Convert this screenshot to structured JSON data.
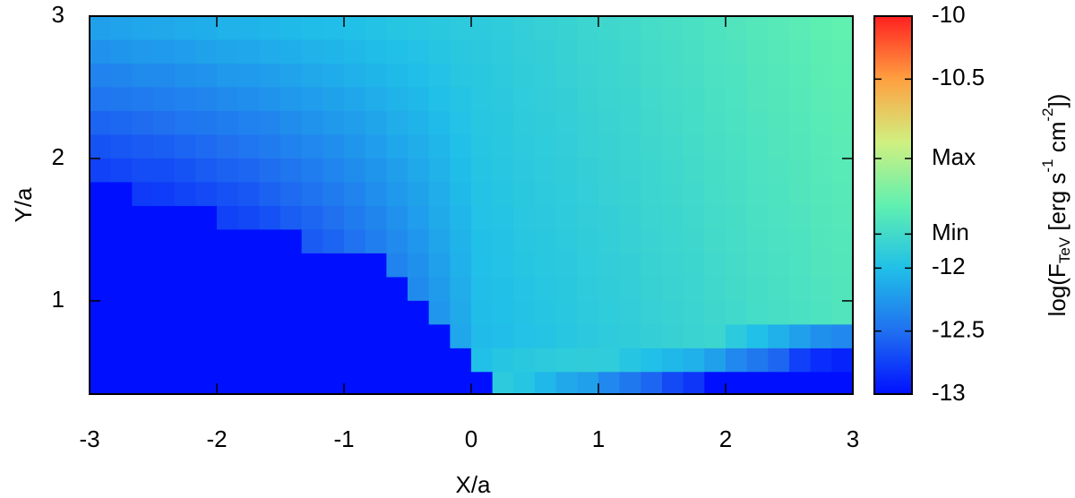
{
  "chart_data": {
    "type": "heatmap",
    "xlabel": "X/a",
    "ylabel": "Y/a",
    "colorbar_label": [
      "log(F",
      "TeV",
      " [erg s",
      "-1",
      " cm",
      "-2",
      "])"
    ],
    "xlim": [
      -3,
      3
    ],
    "ylim": [
      0.345,
      3
    ],
    "xticks": [
      -3,
      -2,
      -1,
      0,
      1,
      2,
      3
    ],
    "yticks": [
      1,
      2,
      3
    ],
    "zlim": [
      -13,
      -10
    ],
    "zticks": [
      -10,
      -10.5,
      {
        "value": -11.13,
        "label": "Max"
      },
      {
        "value": -11.73,
        "label": "Min"
      },
      -12,
      -12.5,
      -13
    ],
    "colorscale": [
      "#0010ff",
      "#2070f0",
      "#20c0e8",
      "#60f0b0",
      "#d0f080",
      "#ffa040",
      "#ff2020"
    ],
    "x": [
      -2.917,
      -2.75,
      -2.583,
      -2.417,
      -2.25,
      -2.083,
      -1.917,
      -1.75,
      -1.583,
      -1.417,
      -1.25,
      -1.083,
      -0.917,
      -0.75,
      -0.583,
      -0.417,
      -0.25,
      -0.083,
      0.083,
      0.25,
      0.417,
      0.583,
      0.75,
      0.917,
      1.083,
      1.25,
      1.417,
      1.583,
      1.75,
      1.917,
      2.083,
      2.25,
      2.417,
      2.583,
      2.75,
      2.917
    ],
    "y": [
      2.917,
      2.75,
      2.583,
      2.417,
      2.25,
      2.083,
      1.917,
      1.75,
      1.583,
      1.417,
      1.25,
      1.083,
      0.917,
      0.75,
      0.583,
      0.417
    ],
    "z": [
      [
        -12.2,
        -12.18,
        -12.16,
        -12.15,
        -12.13,
        -12.11,
        -12.09,
        -12.08,
        -12.06,
        -12.04,
        -12.02,
        -12.01,
        -11.99,
        -11.97,
        -11.95,
        -11.94,
        -11.92,
        -11.9,
        -11.9,
        -11.88,
        -11.85,
        -11.83,
        -11.81,
        -11.78,
        -11.76,
        -11.74,
        -11.71,
        -11.69,
        -11.67,
        -11.64,
        -11.62,
        -11.59,
        -11.57,
        -11.55,
        -11.52,
        -11.5
      ],
      [
        -12.29,
        -12.27,
        -12.25,
        -12.24,
        -12.22,
        -12.19,
        -12.17,
        -12.16,
        -12.13,
        -12.11,
        -12.09,
        -12.07,
        -12.05,
        -12.02,
        -11.99,
        -11.98,
        -11.95,
        -11.92,
        -11.91,
        -11.89,
        -11.86,
        -11.84,
        -11.82,
        -11.79,
        -11.77,
        -11.75,
        -11.72,
        -11.7,
        -11.68,
        -11.65,
        -11.63,
        -11.6,
        -11.58,
        -11.56,
        -11.53,
        -11.51
      ],
      [
        -12.38,
        -12.36,
        -12.34,
        -12.33,
        -12.3,
        -12.28,
        -12.25,
        -12.24,
        -12.21,
        -12.18,
        -12.15,
        -12.13,
        -12.1,
        -12.07,
        -12.04,
        -12.01,
        -11.98,
        -11.94,
        -11.92,
        -11.9,
        -11.87,
        -11.85,
        -11.83,
        -11.8,
        -11.78,
        -11.76,
        -11.73,
        -11.71,
        -11.69,
        -11.66,
        -11.64,
        -11.61,
        -11.59,
        -11.57,
        -11.54,
        -11.52
      ],
      [
        -12.47,
        -12.45,
        -12.43,
        -12.41,
        -12.39,
        -12.36,
        -12.33,
        -12.31,
        -12.28,
        -12.25,
        -12.22,
        -12.19,
        -12.16,
        -12.12,
        -12.08,
        -12.05,
        -12.0,
        -11.96,
        -11.93,
        -11.91,
        -11.88,
        -11.86,
        -11.84,
        -11.81,
        -11.79,
        -11.77,
        -11.74,
        -11.72,
        -11.7,
        -11.67,
        -11.65,
        -11.62,
        -11.6,
        -11.58,
        -11.55,
        -11.53
      ],
      [
        -12.56,
        -12.54,
        -12.52,
        -12.5,
        -12.47,
        -12.45,
        -12.42,
        -12.39,
        -12.36,
        -12.32,
        -12.28,
        -12.25,
        -12.21,
        -12.17,
        -12.12,
        -12.08,
        -12.03,
        -11.98,
        -11.94,
        -11.92,
        -11.89,
        -11.87,
        -11.85,
        -11.82,
        -11.8,
        -11.78,
        -11.75,
        -11.73,
        -11.71,
        -11.68,
        -11.66,
        -11.63,
        -11.61,
        -11.59,
        -11.56,
        -11.54
      ],
      [
        -12.65,
        -12.63,
        -12.61,
        -12.59,
        -12.56,
        -12.53,
        -12.5,
        -12.47,
        -12.43,
        -12.39,
        -12.35,
        -12.31,
        -12.27,
        -12.22,
        -12.16,
        -12.12,
        -12.06,
        -12.0,
        -11.95,
        -11.93,
        -11.9,
        -11.88,
        -11.86,
        -11.83,
        -11.81,
        -11.79,
        -11.76,
        -11.74,
        -11.72,
        -11.69,
        -11.67,
        -11.64,
        -11.62,
        -11.6,
        -11.57,
        -11.55
      ],
      [
        -12.74,
        -12.72,
        -12.69,
        -12.68,
        -12.65,
        -12.61,
        -12.58,
        -12.55,
        -12.51,
        -12.46,
        -12.42,
        -12.37,
        -12.32,
        -12.27,
        -12.21,
        -12.15,
        -12.09,
        -12.02,
        -11.96,
        -11.94,
        -11.91,
        -11.89,
        -11.87,
        -11.84,
        -11.82,
        -11.8,
        -11.77,
        -11.75,
        -11.73,
        -11.7,
        -11.68,
        -11.65,
        -11.63,
        -11.61,
        -11.58,
        -11.56
      ],
      [
        -13,
        -13,
        -12.78,
        -12.77,
        -12.73,
        -12.7,
        -12.66,
        -12.63,
        -12.58,
        -12.53,
        -12.48,
        -12.43,
        -12.38,
        -12.31,
        -12.25,
        -12.19,
        -12.12,
        -12.04,
        -11.97,
        -11.95,
        -11.92,
        -11.9,
        -11.88,
        -11.85,
        -11.83,
        -11.81,
        -11.78,
        -11.76,
        -11.74,
        -11.71,
        -11.69,
        -11.66,
        -11.64,
        -11.62,
        -11.59,
        -11.57
      ],
      [
        -13,
        -13,
        -13,
        -13,
        -13,
        -13,
        -12.74,
        -12.71,
        -12.66,
        -12.6,
        -12.55,
        -12.5,
        -12.43,
        -12.36,
        -12.29,
        -12.22,
        -12.14,
        -12.06,
        -11.98,
        -11.96,
        -11.93,
        -11.91,
        -11.89,
        -11.86,
        -11.84,
        -11.82,
        -11.79,
        -11.77,
        -11.75,
        -11.72,
        -11.7,
        -11.67,
        -11.65,
        -11.63,
        -11.6,
        -11.58
      ],
      [
        -13,
        -13,
        -13,
        -13,
        -13,
        -13,
        -13,
        -13,
        -13,
        -13,
        -12.61,
        -12.56,
        -12.49,
        -12.41,
        -12.33,
        -12.26,
        -12.17,
        -12.08,
        -11.99,
        -11.97,
        -11.94,
        -11.92,
        -11.9,
        -11.87,
        -11.85,
        -11.83,
        -11.8,
        -11.78,
        -11.76,
        -11.73,
        -11.71,
        -11.68,
        -11.66,
        -11.64,
        -11.61,
        -11.59
      ],
      [
        -13,
        -13,
        -13,
        -13,
        -13,
        -13,
        -13,
        -13,
        -13,
        -13,
        -13,
        -13,
        -13,
        -13,
        -12.38,
        -12.3,
        -12.2,
        -12.1,
        -12.0,
        -11.98,
        -11.95,
        -11.93,
        -11.91,
        -11.88,
        -11.86,
        -11.84,
        -11.81,
        -11.79,
        -11.77,
        -11.74,
        -11.72,
        -11.69,
        -11.67,
        -11.65,
        -11.62,
        -11.6
      ],
      [
        -13,
        -13,
        -13,
        -13,
        -13,
        -13,
        -13,
        -13,
        -13,
        -13,
        -13,
        -13,
        -13,
        -13,
        -13,
        -12.33,
        -12.23,
        -12.12,
        -12.01,
        -11.99,
        -11.96,
        -11.94,
        -11.92,
        -11.89,
        -11.87,
        -11.85,
        -11.82,
        -11.8,
        -11.78,
        -11.75,
        -11.73,
        -11.7,
        -11.68,
        -11.66,
        -11.63,
        -11.61
      ],
      [
        -13,
        -13,
        -13,
        -13,
        -13,
        -13,
        -13,
        -13,
        -13,
        -13,
        -13,
        -13,
        -13,
        -13,
        -13,
        -13,
        -12.26,
        -12.14,
        -12.02,
        -12.0,
        -11.97,
        -11.95,
        -11.93,
        -11.9,
        -11.88,
        -11.86,
        -11.83,
        -11.81,
        -11.79,
        -11.76,
        -11.74,
        -11.71,
        -11.69,
        -11.67,
        -11.64,
        -11.62
      ],
      [
        -13,
        -13,
        -13,
        -13,
        -13,
        -13,
        -13,
        -13,
        -13,
        -13,
        -13,
        -13,
        -13,
        -13,
        -13,
        -13,
        -13,
        -12.16,
        -12.03,
        -12.01,
        -11.98,
        -11.96,
        -11.94,
        -11.91,
        -11.89,
        -11.87,
        -11.84,
        -11.82,
        -11.8,
        -11.77,
        -11.9,
        -12.0,
        -12.1,
        -12.2,
        -12.3,
        -12.35
      ],
      [
        -13,
        -13,
        -13,
        -13,
        -13,
        -13,
        -13,
        -13,
        -13,
        -13,
        -13,
        -13,
        -13,
        -13,
        -13,
        -13,
        -13,
        -13,
        -12.0,
        -11.95,
        -11.92,
        -11.9,
        -11.88,
        -11.87,
        -11.88,
        -11.95,
        -12.0,
        -12.05,
        -12.1,
        -12.2,
        -12.35,
        -12.45,
        -12.55,
        -12.75,
        -12.85,
        -12.9
      ],
      [
        -13,
        -13,
        -13,
        -13,
        -13,
        -13,
        -13,
        -13,
        -13,
        -13,
        -13,
        -13,
        -13,
        -13,
        -13,
        -13,
        -13,
        -13,
        -13,
        -11.9,
        -11.95,
        -12.05,
        -12.15,
        -12.2,
        -12.35,
        -12.45,
        -12.55,
        -12.7,
        -12.8,
        -13,
        -13,
        -13,
        -13,
        -13,
        -13,
        -13
      ]
    ]
  }
}
